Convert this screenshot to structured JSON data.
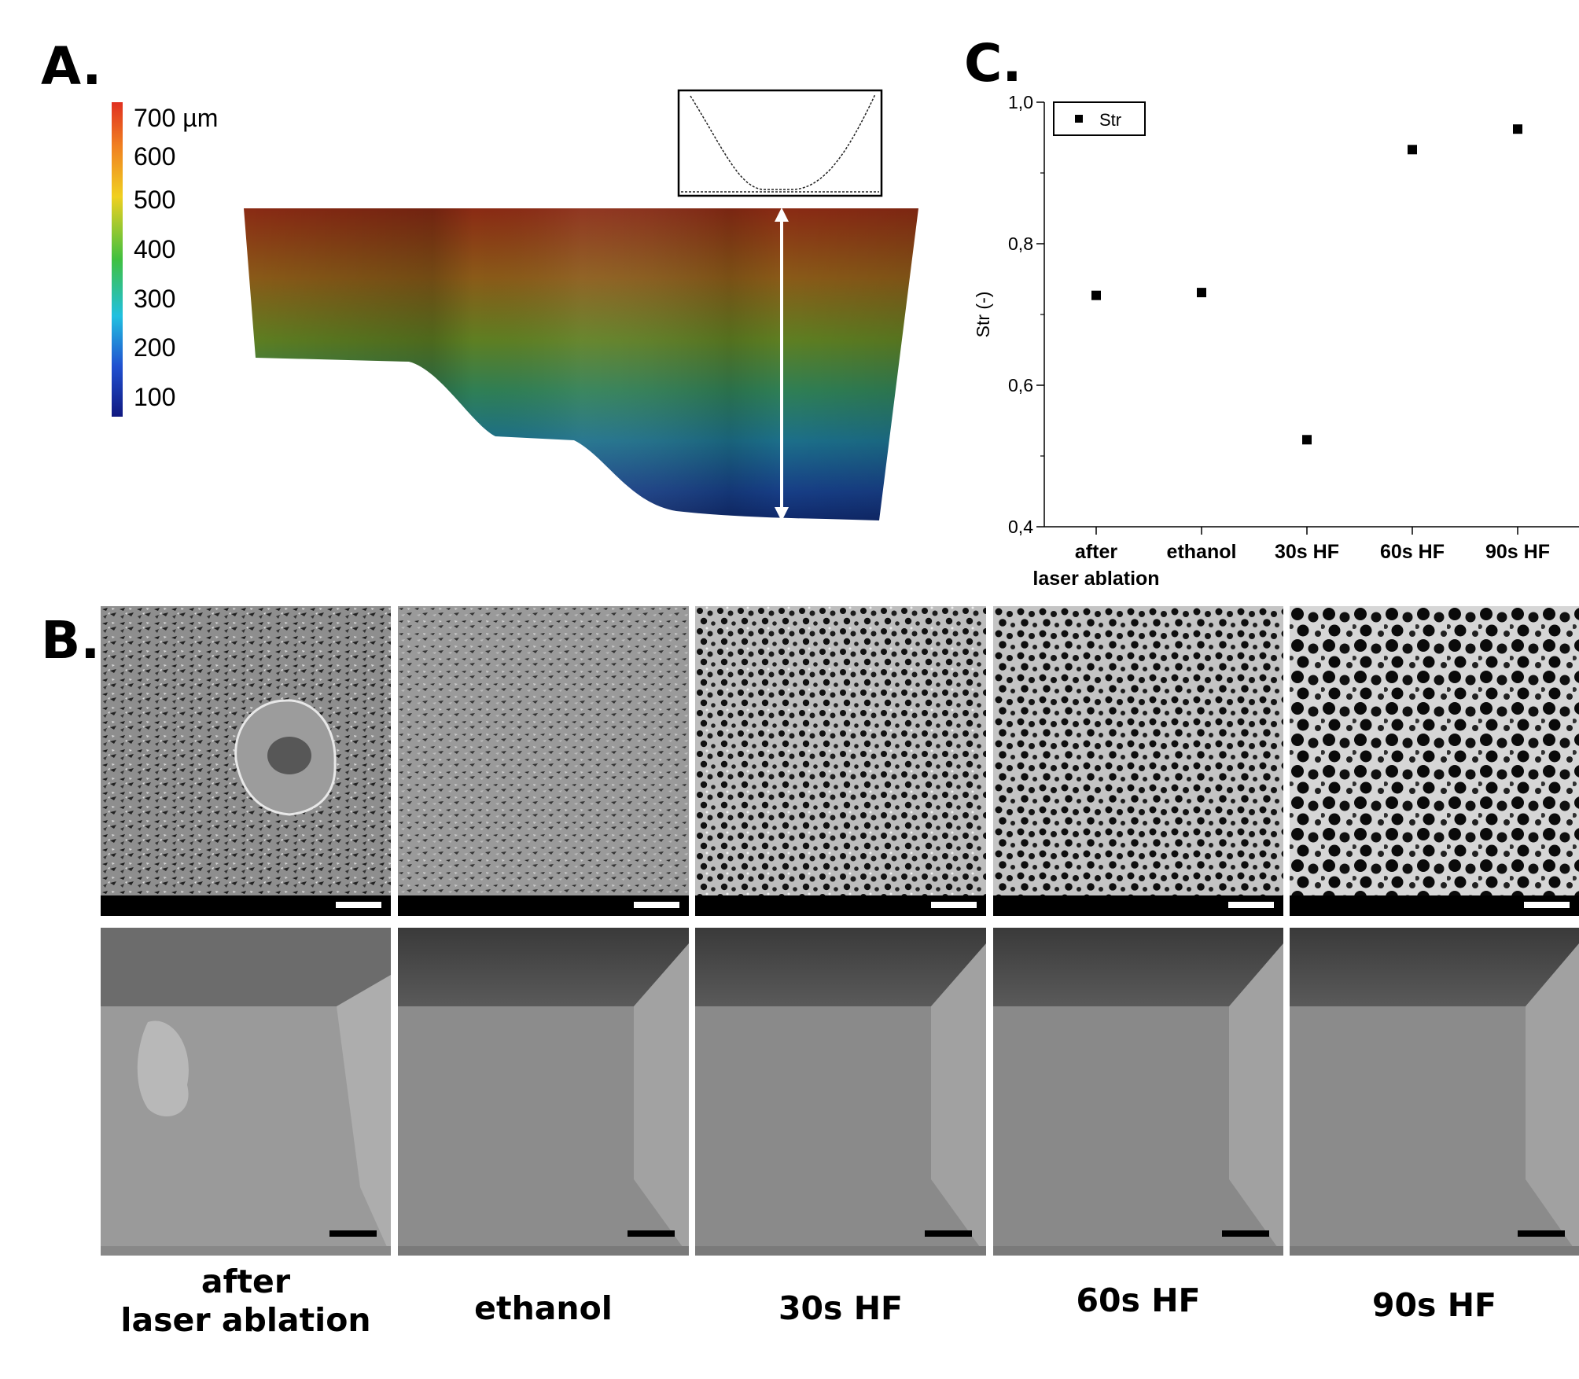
{
  "panels": {
    "a_letter": "A.",
    "b_letter": "B.",
    "c_letter": "C."
  },
  "colorbar": {
    "labels": [
      "700 µm",
      "600",
      "500",
      "400",
      "300",
      "200",
      "100"
    ],
    "colors": [
      "#e03020",
      "#f08020",
      "#f0d020",
      "#40c040",
      "#20c0e0",
      "#2050d0",
      "#101880"
    ]
  },
  "chart_data": {
    "type": "scatter",
    "categories": [
      "after\nlaser ablation",
      "ethanol",
      "30s HF",
      "60s HF",
      "90s HF"
    ],
    "series": [
      {
        "name": "Str",
        "values": [
          0.727,
          0.731,
          0.523,
          0.933,
          0.962
        ]
      }
    ],
    "ylabel": "Str (-)",
    "xlabel": "",
    "ylim": [
      0.4,
      1.0
    ],
    "yticks": [
      "0,4",
      "0,6",
      "0,8",
      "1,0"
    ],
    "legend": "top-left",
    "grid": false
  },
  "captions": [
    "after\nlaser ablation",
    "ethanol",
    "30s HF",
    "60s HF",
    "90s HF"
  ]
}
